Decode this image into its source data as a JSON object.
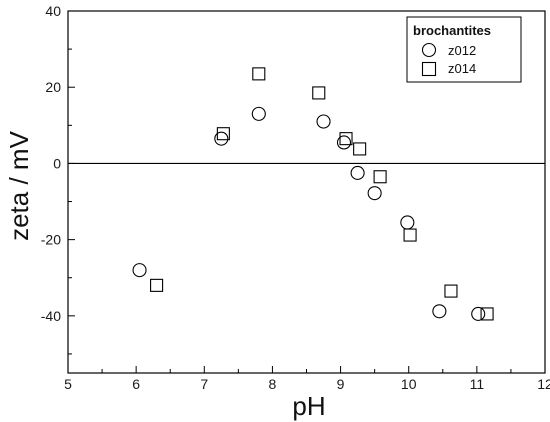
{
  "chart_data": {
    "type": "scatter",
    "xlabel": "pH",
    "ylabel": "zeta / mV",
    "xlim": [
      5,
      12
    ],
    "ylim": [
      -55,
      40
    ],
    "xticks": [
      "5",
      "6",
      "7",
      "8",
      "9",
      "10",
      "11",
      "12"
    ],
    "yticks": [
      "-40",
      "-20",
      "0",
      "20",
      "40"
    ],
    "zero_line": true,
    "grid": false,
    "legend": {
      "title": "brochantites",
      "position": "top-right"
    },
    "series": [
      {
        "name": "z012",
        "marker": "circle",
        "x": [
          6.05,
          7.25,
          7.8,
          8.75,
          9.05,
          9.25,
          9.5,
          9.98,
          10.45,
          11.02
        ],
        "y": [
          -28,
          6.5,
          13,
          11,
          5.5,
          -2.5,
          -7.8,
          -15.5,
          -38.8,
          -39.5
        ]
      },
      {
        "name": "z014",
        "marker": "square",
        "x": [
          6.3,
          7.28,
          7.8,
          8.68,
          9.08,
          9.28,
          9.58,
          10.02,
          10.62,
          11.15
        ],
        "y": [
          -32,
          7.8,
          23.5,
          18.5,
          6.5,
          3.8,
          -3.5,
          -18.8,
          -33.5,
          -39.5
        ]
      }
    ]
  }
}
